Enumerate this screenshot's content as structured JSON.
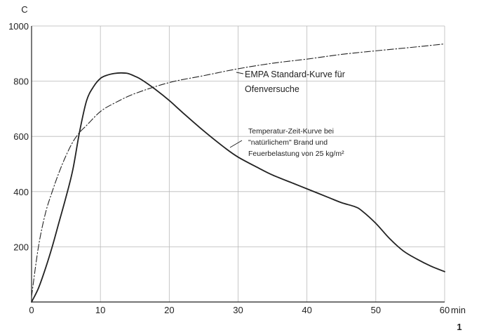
{
  "chart_data": {
    "type": "line",
    "title": "",
    "xlabel": "min",
    "ylabel": "C",
    "xlim": [
      0,
      60
    ],
    "ylim": [
      0,
      1000
    ],
    "x_ticks": [
      0,
      10,
      20,
      30,
      40,
      50,
      60
    ],
    "y_ticks": [
      0,
      200,
      400,
      600,
      800,
      1000
    ],
    "grid": true,
    "series": [
      {
        "name": "EMPA Standard-Kurve für Ofenversuche",
        "style": "dash-dot",
        "color": "#222222",
        "x": [
          0,
          1,
          2,
          3,
          4,
          5,
          6,
          7,
          8,
          10,
          12,
          15,
          20,
          25,
          30,
          35,
          40,
          45,
          50,
          55,
          60
        ],
        "y": [
          20,
          200,
          320,
          400,
          470,
          530,
          580,
          615,
          640,
          690,
          720,
          755,
          795,
          820,
          845,
          865,
          880,
          897,
          910,
          922,
          935
        ]
      },
      {
        "name": "Temperatur-Zeit-Kurve bei \"natürlichem\" Brand und Feuerbelastung von 25 kg/m²",
        "style": "solid",
        "color": "#222222",
        "x": [
          0,
          1,
          2,
          3,
          4,
          5,
          6,
          7,
          8,
          9,
          10,
          11,
          12,
          13,
          14,
          15,
          16,
          18,
          20,
          22,
          25,
          28,
          30,
          33,
          35,
          38,
          40,
          43,
          45,
          47,
          48,
          50,
          52,
          54,
          56,
          58,
          60
        ],
        "y": [
          0,
          50,
          120,
          200,
          290,
          380,
          480,
          620,
          730,
          780,
          810,
          822,
          828,
          830,
          828,
          818,
          805,
          770,
          730,
          685,
          620,
          560,
          525,
          485,
          460,
          430,
          410,
          380,
          360,
          345,
          330,
          285,
          230,
          185,
          155,
          130,
          110
        ]
      }
    ],
    "annotations": [
      {
        "lines": [
          "EMPA Standard-Kurve für",
          "Ofenversuche"
        ]
      },
      {
        "lines": [
          "Temperatur-Zeit-Kurve bei",
          "\"natürlichem\" Brand und",
          "Feuerbelastung von 25 kg/m²"
        ]
      }
    ],
    "figure_number": "1"
  }
}
